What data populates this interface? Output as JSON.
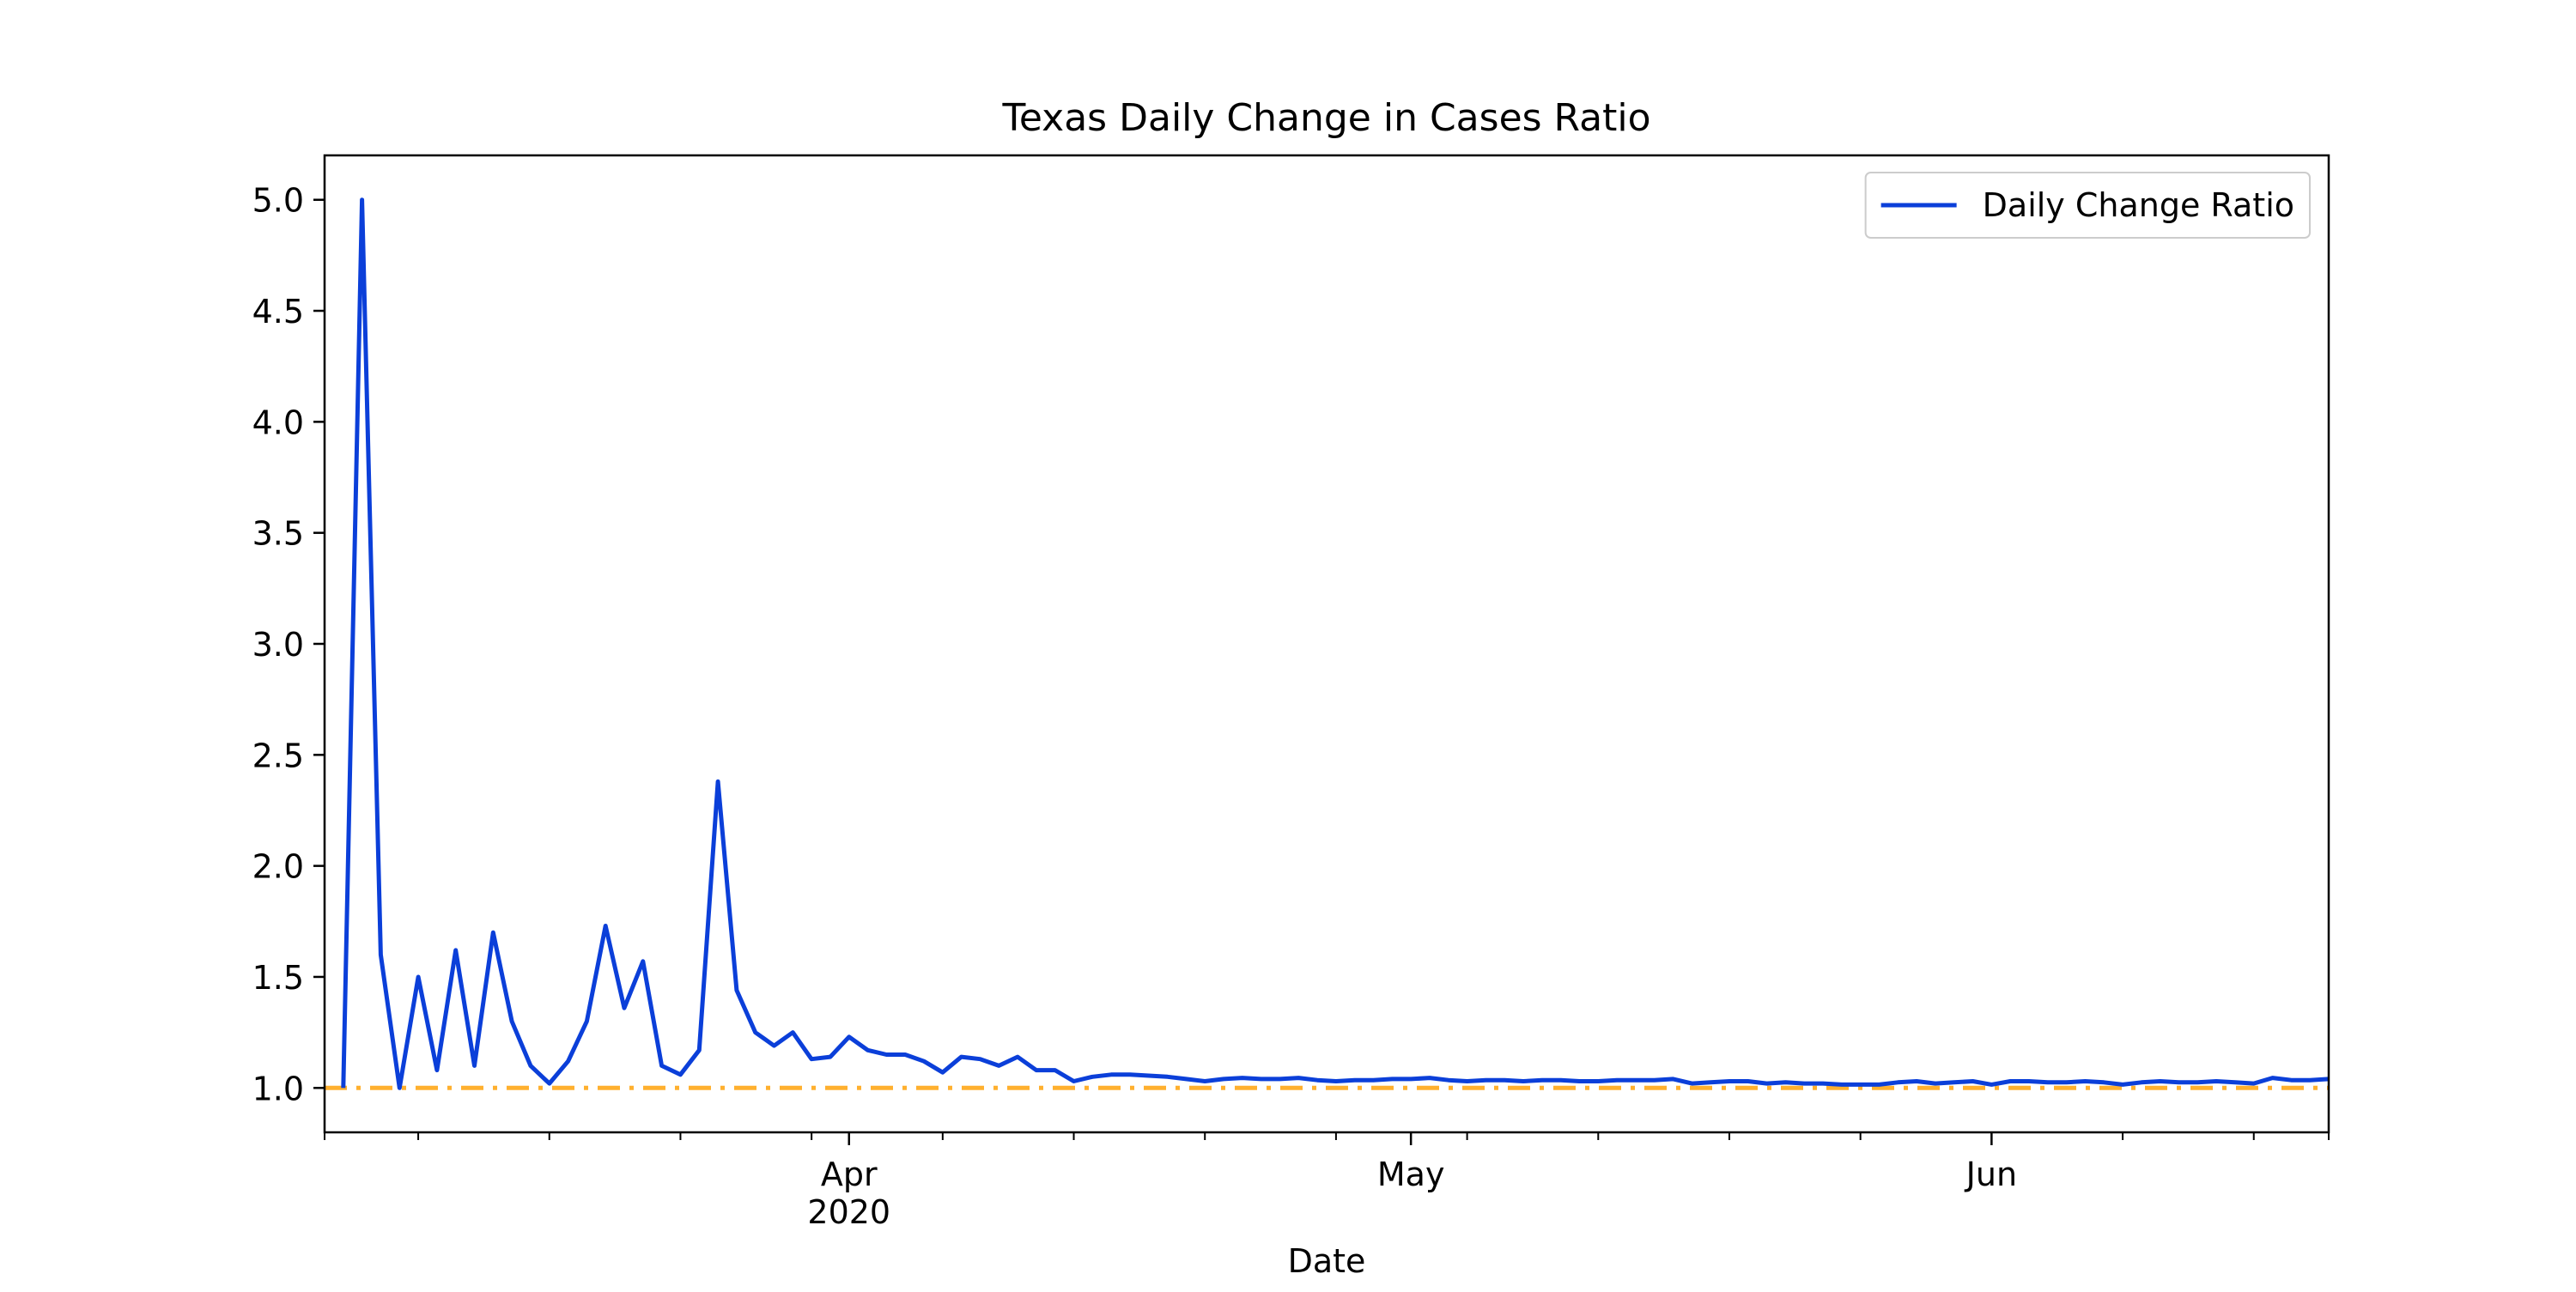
{
  "chart_data": {
    "type": "line",
    "title": "Texas Daily Change in Cases Ratio",
    "xlabel": "Date",
    "ylabel": "",
    "x_start": "2020-03-04",
    "xlim": [
      "2020-03-04",
      "2020-06-19"
    ],
    "ylim": [
      0.8,
      5.2
    ],
    "yticks": [
      1.0,
      1.5,
      2.0,
      2.5,
      3.0,
      3.5,
      4.0,
      4.5,
      5.0
    ],
    "ytick_labels": [
      "1.0",
      "1.5",
      "2.0",
      "2.5",
      "3.0",
      "3.5",
      "4.0",
      "4.5",
      "5.0"
    ],
    "xticks_major": [
      {
        "date": "2020-04-01",
        "label": "Apr",
        "sublabel": "2020"
      },
      {
        "date": "2020-05-01",
        "label": "May",
        "sublabel": ""
      },
      {
        "date": "2020-06-01",
        "label": "Jun",
        "sublabel": ""
      }
    ],
    "xticks_minor": [
      "2020-03-04",
      "2020-03-09",
      "2020-03-16",
      "2020-03-23",
      "2020-03-30",
      "2020-04-06",
      "2020-04-13",
      "2020-04-20",
      "2020-04-27",
      "2020-05-04",
      "2020-05-11",
      "2020-05-18",
      "2020-05-25",
      "2020-06-08",
      "2020-06-15",
      "2020-06-19"
    ],
    "grid": false,
    "legend": {
      "position": "top-right"
    },
    "series": [
      {
        "name": "Daily Change Ratio",
        "color": "#0b3fd9",
        "x": [
          "2020-03-05",
          "2020-03-06",
          "2020-03-07",
          "2020-03-08",
          "2020-03-09",
          "2020-03-10",
          "2020-03-11",
          "2020-03-12",
          "2020-03-13",
          "2020-03-14",
          "2020-03-15",
          "2020-03-16",
          "2020-03-17",
          "2020-03-18",
          "2020-03-19",
          "2020-03-20",
          "2020-03-21",
          "2020-03-22",
          "2020-03-23",
          "2020-03-24",
          "2020-03-25",
          "2020-03-26",
          "2020-03-27",
          "2020-03-28",
          "2020-03-29",
          "2020-03-30",
          "2020-03-31",
          "2020-04-01",
          "2020-04-02",
          "2020-04-03",
          "2020-04-04",
          "2020-04-05",
          "2020-04-06",
          "2020-04-07",
          "2020-04-08",
          "2020-04-09",
          "2020-04-10",
          "2020-04-11",
          "2020-04-12",
          "2020-04-13",
          "2020-04-14",
          "2020-04-15",
          "2020-04-16",
          "2020-04-17",
          "2020-04-18",
          "2020-04-19",
          "2020-04-20",
          "2020-04-21",
          "2020-04-22",
          "2020-04-23",
          "2020-04-24",
          "2020-04-25",
          "2020-04-26",
          "2020-04-27",
          "2020-04-28",
          "2020-04-29",
          "2020-04-30",
          "2020-05-01",
          "2020-05-02",
          "2020-05-03",
          "2020-05-04",
          "2020-05-05",
          "2020-05-06",
          "2020-05-07",
          "2020-05-08",
          "2020-05-09",
          "2020-05-10",
          "2020-05-11",
          "2020-05-12",
          "2020-05-13",
          "2020-05-14",
          "2020-05-15",
          "2020-05-16",
          "2020-05-17",
          "2020-05-18",
          "2020-05-19",
          "2020-05-20",
          "2020-05-21",
          "2020-05-22",
          "2020-05-23",
          "2020-05-24",
          "2020-05-25",
          "2020-05-26",
          "2020-05-27",
          "2020-05-28",
          "2020-05-29",
          "2020-05-30",
          "2020-05-31",
          "2020-06-01",
          "2020-06-02",
          "2020-06-03",
          "2020-06-04",
          "2020-06-05",
          "2020-06-06",
          "2020-06-07",
          "2020-06-08",
          "2020-06-09",
          "2020-06-10",
          "2020-06-11",
          "2020-06-12",
          "2020-06-13",
          "2020-06-14",
          "2020-06-15",
          "2020-06-16",
          "2020-06-17",
          "2020-06-18",
          "2020-06-19"
        ],
        "values": [
          1.0,
          5.0,
          1.6,
          1.0,
          1.5,
          1.08,
          1.62,
          1.1,
          1.7,
          1.3,
          1.1,
          1.02,
          1.12,
          1.3,
          1.73,
          1.36,
          1.57,
          1.1,
          1.06,
          1.17,
          2.38,
          1.44,
          1.25,
          1.19,
          1.25,
          1.13,
          1.14,
          1.23,
          1.17,
          1.15,
          1.15,
          1.12,
          1.07,
          1.14,
          1.13,
          1.1,
          1.14,
          1.08,
          1.08,
          1.03,
          1.05,
          1.06,
          1.06,
          1.055,
          1.05,
          1.04,
          1.03,
          1.04,
          1.045,
          1.04,
          1.04,
          1.045,
          1.035,
          1.03,
          1.035,
          1.035,
          1.04,
          1.04,
          1.045,
          1.035,
          1.03,
          1.035,
          1.035,
          1.03,
          1.035,
          1.035,
          1.03,
          1.03,
          1.035,
          1.035,
          1.035,
          1.04,
          1.02,
          1.025,
          1.03,
          1.03,
          1.02,
          1.025,
          1.02,
          1.02,
          1.015,
          1.015,
          1.015,
          1.025,
          1.03,
          1.02,
          1.025,
          1.03,
          1.015,
          1.03,
          1.03,
          1.025,
          1.025,
          1.03,
          1.025,
          1.015,
          1.025,
          1.03,
          1.025,
          1.025,
          1.03,
          1.025,
          1.02,
          1.045,
          1.035,
          1.035,
          1.04
        ]
      }
    ],
    "reference_line": {
      "y": 1.0,
      "color": "#ffb02e",
      "style": "dash-dot"
    }
  }
}
